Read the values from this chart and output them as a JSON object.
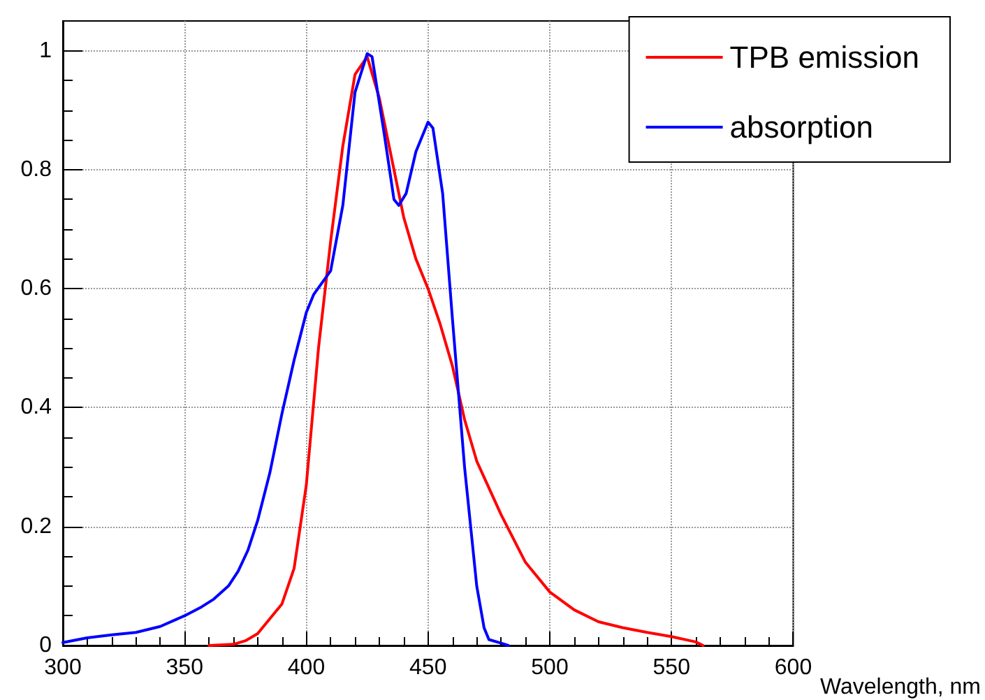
{
  "chart_data": {
    "type": "line",
    "xlabel": "Wavelength, nm",
    "xlim": [
      300,
      600
    ],
    "xticks": [
      300,
      350,
      400,
      450,
      500,
      550,
      600
    ],
    "ylim": [
      0,
      1.05
    ],
    "yticks": [
      0,
      0.2,
      0.4,
      0.6,
      0.8,
      1
    ],
    "grid": true,
    "legend": "top right",
    "marker": "none",
    "line_style": "solid",
    "series": [
      {
        "name": "TPB emission",
        "color": "#ff0000",
        "x": [
          360,
          370,
          375,
          380,
          385,
          390,
          395,
          400,
          405,
          410,
          415,
          420,
          425,
          430,
          435,
          440,
          445,
          450,
          455,
          460,
          465,
          470,
          480,
          490,
          500,
          510,
          520,
          530,
          540,
          550,
          560,
          563
        ],
        "values": [
          0,
          0.002,
          0.008,
          0.02,
          0.045,
          0.07,
          0.13,
          0.27,
          0.5,
          0.68,
          0.84,
          0.96,
          0.99,
          0.92,
          0.82,
          0.72,
          0.65,
          0.6,
          0.54,
          0.47,
          0.38,
          0.31,
          0.22,
          0.14,
          0.09,
          0.06,
          0.04,
          0.03,
          0.022,
          0.015,
          0.006,
          0
        ]
      },
      {
        "name": "absorption",
        "color": "#0000ff",
        "x": [
          300,
          310,
          320,
          330,
          340,
          350,
          357,
          362,
          368,
          372,
          376,
          380,
          385,
          390,
          395,
          400,
          403,
          410,
          415,
          420,
          425,
          427,
          432,
          436,
          438,
          441,
          445,
          450,
          452,
          456,
          460,
          465,
          470,
          473,
          475,
          480,
          483
        ],
        "values": [
          0.005,
          0.013,
          0.018,
          0.022,
          0.032,
          0.05,
          0.065,
          0.078,
          0.1,
          0.125,
          0.16,
          0.21,
          0.29,
          0.39,
          0.48,
          0.56,
          0.59,
          0.63,
          0.74,
          0.93,
          0.995,
          0.99,
          0.86,
          0.75,
          0.74,
          0.76,
          0.83,
          0.88,
          0.87,
          0.76,
          0.55,
          0.3,
          0.1,
          0.03,
          0.01,
          0.004,
          0
        ]
      }
    ]
  }
}
